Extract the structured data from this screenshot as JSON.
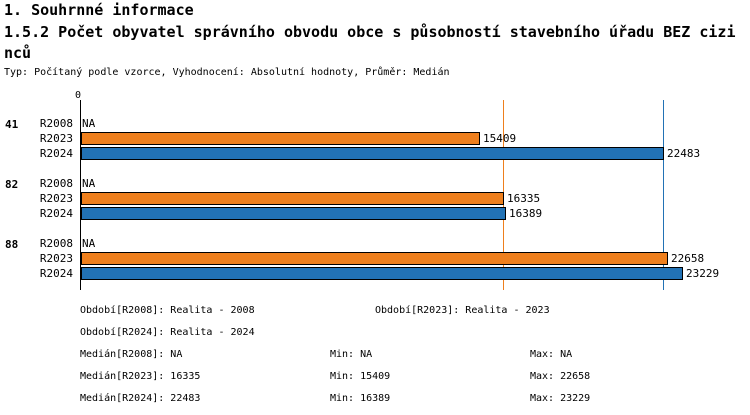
{
  "header": {
    "title_line1": "1. Souhrnné informace",
    "title_line2": "1.5.2 Počet obyvatel správního obvodu obce s působností stavebního úřadu BEZ cizinců",
    "subtitle": "Typ: Počítaný podle vzorce, Vyhodnocení: Absolutní hodnoty, Průměr: Medián"
  },
  "chart_data": {
    "type": "bar",
    "orientation": "horizontal",
    "title": "1.5.2 Počet obyvatel správního obvodu obce s působností stavebního úřadu BEZ cizinců",
    "axis_zero_label": "0",
    "xmax": 23229,
    "grid": false,
    "series_colors": {
      "R2023": "#EE7F1D",
      "R2024": "#2272B5"
    },
    "groups": [
      {
        "label": "41",
        "rows": [
          {
            "series": "R2008",
            "value": null,
            "display": "NA"
          },
          {
            "series": "R2023",
            "value": 15409,
            "display": "15409"
          },
          {
            "series": "R2024",
            "value": 22483,
            "display": "22483"
          }
        ]
      },
      {
        "label": "82",
        "rows": [
          {
            "series": "R2008",
            "value": null,
            "display": "NA"
          },
          {
            "series": "R2023",
            "value": 16335,
            "display": "16335"
          },
          {
            "series": "R2024",
            "value": 16389,
            "display": "16389"
          }
        ]
      },
      {
        "label": "88",
        "rows": [
          {
            "series": "R2008",
            "value": null,
            "display": "NA"
          },
          {
            "series": "R2023",
            "value": 22658,
            "display": "22658"
          },
          {
            "series": "R2024",
            "value": 23229,
            "display": "23229"
          }
        ]
      }
    ],
    "median_lines": [
      {
        "series": "R2023",
        "value": 16335,
        "color": "#EE7F1D"
      },
      {
        "series": "R2024",
        "value": 22483,
        "color": "#2272B5"
      }
    ]
  },
  "legend": {
    "periods": [
      {
        "col1": "Období[R2008]: Realita - 2008",
        "col2": "Období[R2023]: Realita - 2023"
      },
      {
        "col1": "Období[R2024]: Realita - 2024",
        "col2": ""
      }
    ],
    "stats": [
      {
        "median": "Medián[R2008]: NA",
        "min": "Min: NA",
        "max": "Max: NA"
      },
      {
        "median": "Medián[R2023]: 16335",
        "min": "Min: 15409",
        "max": "Max: 22658"
      },
      {
        "median": "Medián[R2024]: 22483",
        "min": "Min: 16389",
        "max": "Max: 23229"
      }
    ]
  }
}
